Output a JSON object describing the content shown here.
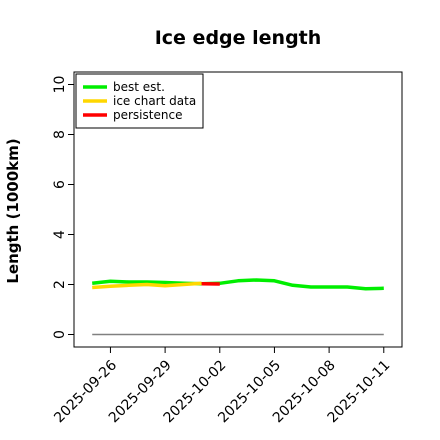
{
  "chart_data": {
    "type": "line",
    "title": "Ice edge length",
    "xlabel": "",
    "ylabel": "Length (1000km)",
    "ylim": [
      -0.5,
      10.5
    ],
    "xlim": [
      "2025-09-24",
      "2025-10-12"
    ],
    "yticks": [
      0,
      2,
      4,
      6,
      8,
      10
    ],
    "xticks": [
      "2025-09-26",
      "2025-09-29",
      "2025-10-02",
      "2025-10-05",
      "2025-10-08",
      "2025-10-11"
    ],
    "legend_position": "top-left",
    "grid": false,
    "series": [
      {
        "name": "best est.",
        "color": "#00ee00",
        "x": [
          "2025-09-25",
          "2025-09-26",
          "2025-09-27",
          "2025-09-28",
          "2025-09-29",
          "2025-09-30",
          "2025-10-01",
          "2025-10-02",
          "2025-10-03",
          "2025-10-04",
          "2025-10-05",
          "2025-10-06",
          "2025-10-07",
          "2025-10-08",
          "2025-10-09",
          "2025-10-10",
          "2025-10-11"
        ],
        "values": [
          2.05,
          2.13,
          2.1,
          2.1,
          2.08,
          2.05,
          2.03,
          2.05,
          2.15,
          2.18,
          2.15,
          1.97,
          1.9,
          1.9,
          1.9,
          1.83,
          1.85
        ]
      },
      {
        "name": "ice chart data",
        "color": "#ffd700",
        "x": [
          "2025-09-25",
          "2025-09-26",
          "2025-09-27",
          "2025-09-28",
          "2025-09-29",
          "2025-09-30",
          "2025-10-01"
        ],
        "values": [
          1.88,
          1.93,
          1.97,
          2.0,
          1.95,
          2.0,
          2.05
        ]
      },
      {
        "name": "persistence",
        "color": "#ff0000",
        "x": [
          "2025-10-01",
          "2025-10-02"
        ],
        "values": [
          2.03,
          2.02
        ]
      }
    ],
    "reference_line": {
      "y": 0,
      "color": "#808080"
    }
  }
}
